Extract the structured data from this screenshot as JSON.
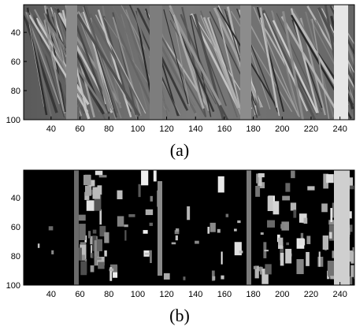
{
  "panels": [
    {
      "id": "a",
      "caption": "(a)",
      "kind": "grayscale-photo",
      "subject": "palm-leaf-texture",
      "x_ticks": [
        40,
        60,
        80,
        100,
        120,
        140,
        160,
        180,
        200,
        220,
        240
      ],
      "y_ticks": [
        40,
        60,
        80,
        100
      ],
      "x_range": [
        21,
        250
      ],
      "y_range": [
        21,
        100
      ]
    },
    {
      "id": "b",
      "caption": "(b)",
      "kind": "thresholded-mask",
      "subject": "segmented-palm-leaf-texture",
      "x_ticks": [
        40,
        60,
        80,
        100,
        120,
        140,
        160,
        180,
        200,
        220,
        240
      ],
      "y_ticks": [
        40,
        60,
        80,
        100
      ],
      "x_range": [
        21,
        250
      ],
      "y_range": [
        21,
        100
      ]
    }
  ],
  "colors": {
    "panel_a_background": "#6e6e6e",
    "panel_b_background": "#000000",
    "axis": "#000000"
  }
}
